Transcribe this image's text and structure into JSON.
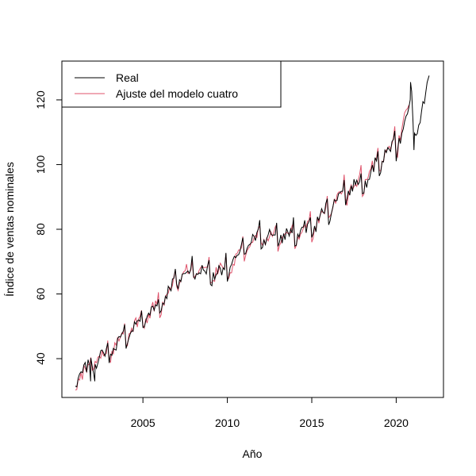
{
  "chart_data": {
    "type": "line",
    "title": "",
    "xlabel": "Año",
    "ylabel": "Índice de ventas nominales",
    "xlim": [
      2000.2,
      2022.8
    ],
    "ylim": [
      28,
      132
    ],
    "x_ticks": [
      2005,
      2010,
      2015,
      2020
    ],
    "x_tick_labels": [
      "2005",
      "2010",
      "2015",
      "2020"
    ],
    "y_ticks": [
      40,
      60,
      80,
      100,
      120
    ],
    "y_tick_labels": [
      "40",
      "60",
      "80",
      "100",
      "120"
    ],
    "grid": false,
    "legend": {
      "position": "top-left"
    },
    "start_year": 2001,
    "series": [
      {
        "name": "Real",
        "color": "#000000",
        "anchors": [
          [
            2001.0,
            33.5
          ],
          [
            2001.5,
            36.0
          ],
          [
            2002.0,
            38.5
          ],
          [
            2003.0,
            42.0
          ],
          [
            2004.0,
            47.0
          ],
          [
            2005.0,
            52.0
          ],
          [
            2006.0,
            56.5
          ],
          [
            2007.0,
            64.5
          ],
          [
            2008.0,
            67.5
          ],
          [
            2009.0,
            66.0
          ],
          [
            2010.0,
            67.5
          ],
          [
            2011.0,
            74.0
          ],
          [
            2012.0,
            78.0
          ],
          [
            2013.0,
            77.5
          ],
          [
            2014.0,
            78.5
          ],
          [
            2015.0,
            80.5
          ],
          [
            2016.0,
            86.0
          ],
          [
            2017.0,
            92.0
          ],
          [
            2018.0,
            94.0
          ],
          [
            2019.0,
            101.0
          ],
          [
            2020.0,
            106.0
          ],
          [
            2020.9,
            118.0
          ],
          [
            2021.2,
            110.0
          ],
          [
            2021.5,
            114.0
          ],
          [
            2021.9,
            124.0
          ]
        ],
        "seasonal_amplitude": 3.8,
        "extra_points": [
          [
            2001.9,
            33.0
          ],
          [
            2002.15,
            33.0
          ],
          [
            2020.85,
            125.5
          ],
          [
            2021.05,
            104.5
          ],
          [
            2021.95,
            127.5
          ]
        ]
      },
      {
        "name": "Ajuste del modelo cuatro",
        "color": "#DF536B",
        "anchors": [
          [
            2001.0,
            32.0
          ],
          [
            2001.5,
            35.5
          ],
          [
            2002.0,
            38.5
          ],
          [
            2003.0,
            42.0
          ],
          [
            2004.0,
            47.0
          ],
          [
            2005.0,
            52.0
          ],
          [
            2006.0,
            56.5
          ],
          [
            2007.0,
            64.5
          ],
          [
            2008.0,
            67.5
          ],
          [
            2009.0,
            66.0
          ],
          [
            2010.0,
            67.5
          ],
          [
            2011.0,
            74.0
          ],
          [
            2012.0,
            78.0
          ],
          [
            2013.0,
            77.5
          ],
          [
            2014.0,
            78.5
          ],
          [
            2015.0,
            80.5
          ],
          [
            2016.0,
            86.0
          ],
          [
            2017.0,
            92.0
          ],
          [
            2018.0,
            94.0
          ],
          [
            2019.0,
            101.0
          ],
          [
            2020.0,
            106.0
          ],
          [
            2020.8,
            118.0
          ]
        ],
        "seasonal_amplitude": 4.2,
        "end_year": 2020.8
      }
    ]
  }
}
